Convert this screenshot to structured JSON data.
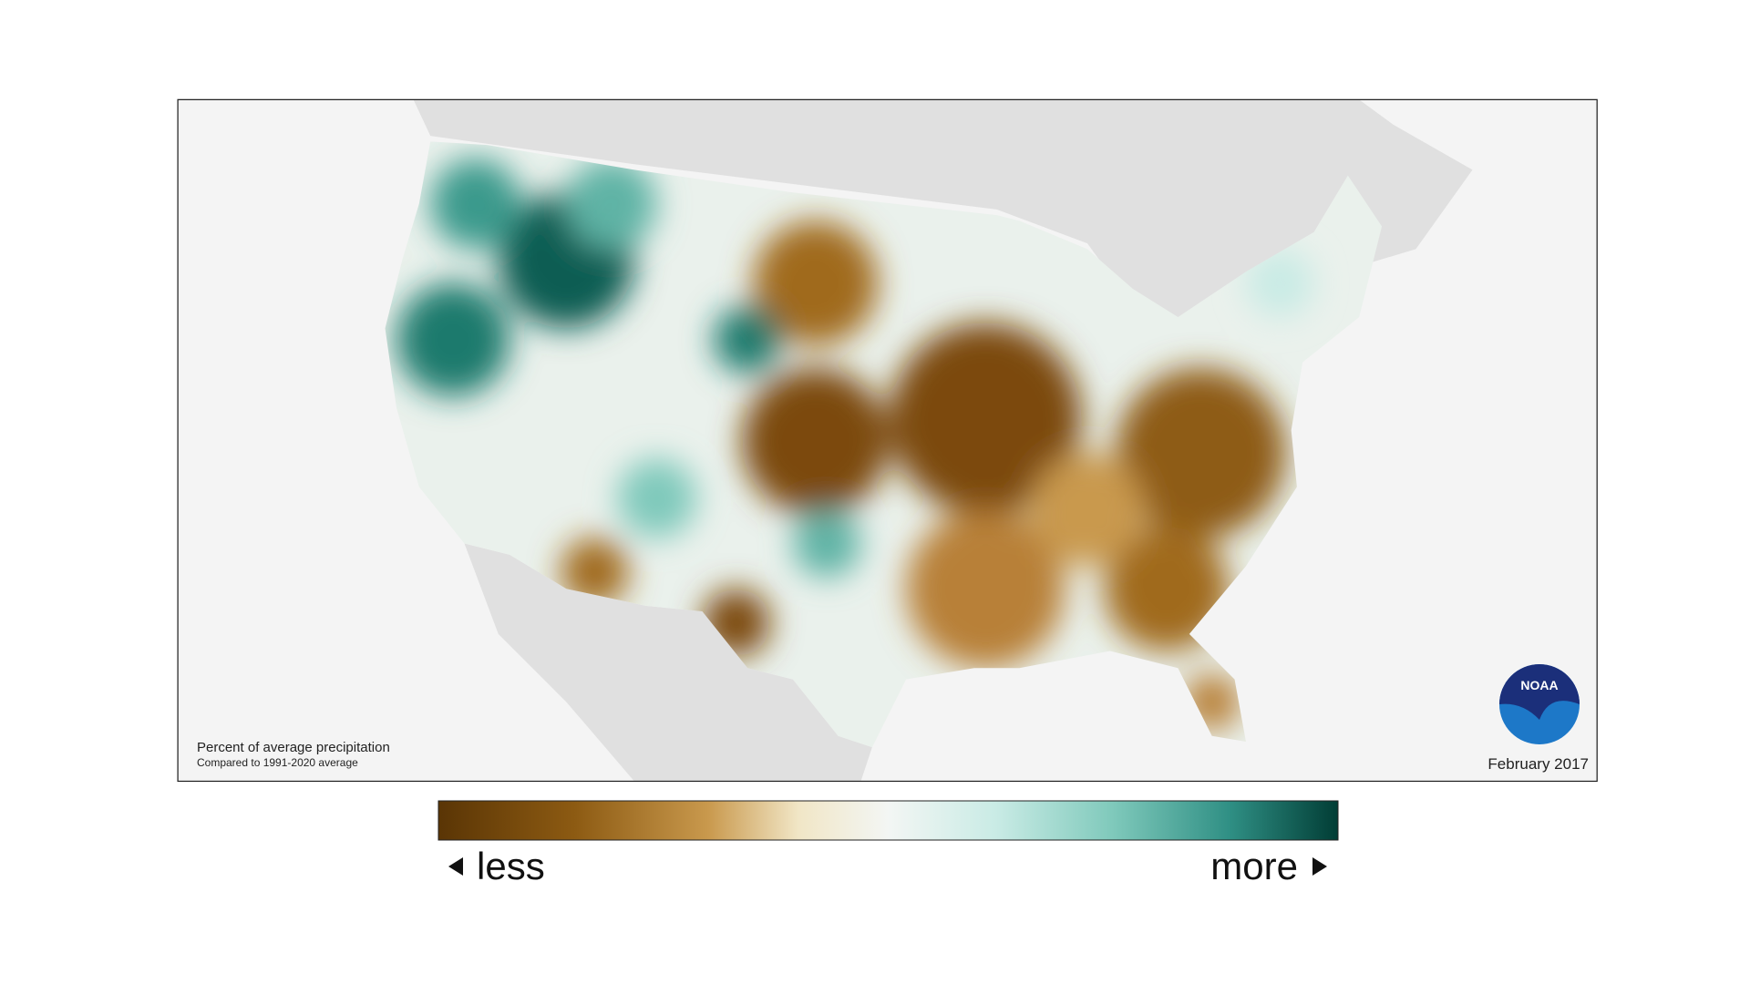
{
  "map": {
    "legend": {
      "title": "Percent of average precipitation",
      "subtitle": "Compared to 1991-2020 average",
      "date": "February 2017",
      "less": "less",
      "more": "more"
    },
    "logo": "NOAA"
  }
}
